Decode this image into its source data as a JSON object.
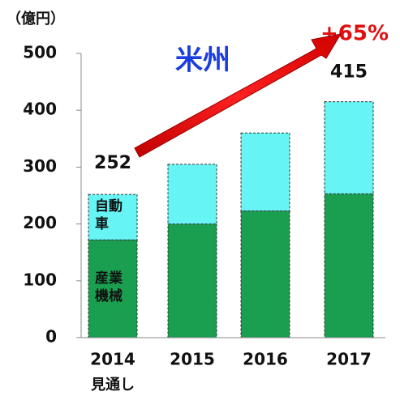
{
  "chart_data": {
    "type": "stacked-bar",
    "y_unit": "（億円）",
    "region": "米州",
    "growth": "+65%",
    "categories": [
      "2014",
      "2015",
      "2016",
      "2017"
    ],
    "category_notes": [
      "見通し",
      null,
      null,
      null
    ],
    "series": [
      {
        "name": "産業機械",
        "color": "#1a9e4f",
        "values": [
          172,
          200,
          223,
          253
        ]
      },
      {
        "name": "自動車",
        "color": "#66f4f4",
        "values": [
          80,
          105,
          137,
          162
        ]
      }
    ],
    "totals": [
      252,
      null,
      null,
      415
    ],
    "ylim": [
      0,
      500
    ],
    "yticks": [
      0,
      100,
      200,
      300,
      400,
      500
    ]
  }
}
